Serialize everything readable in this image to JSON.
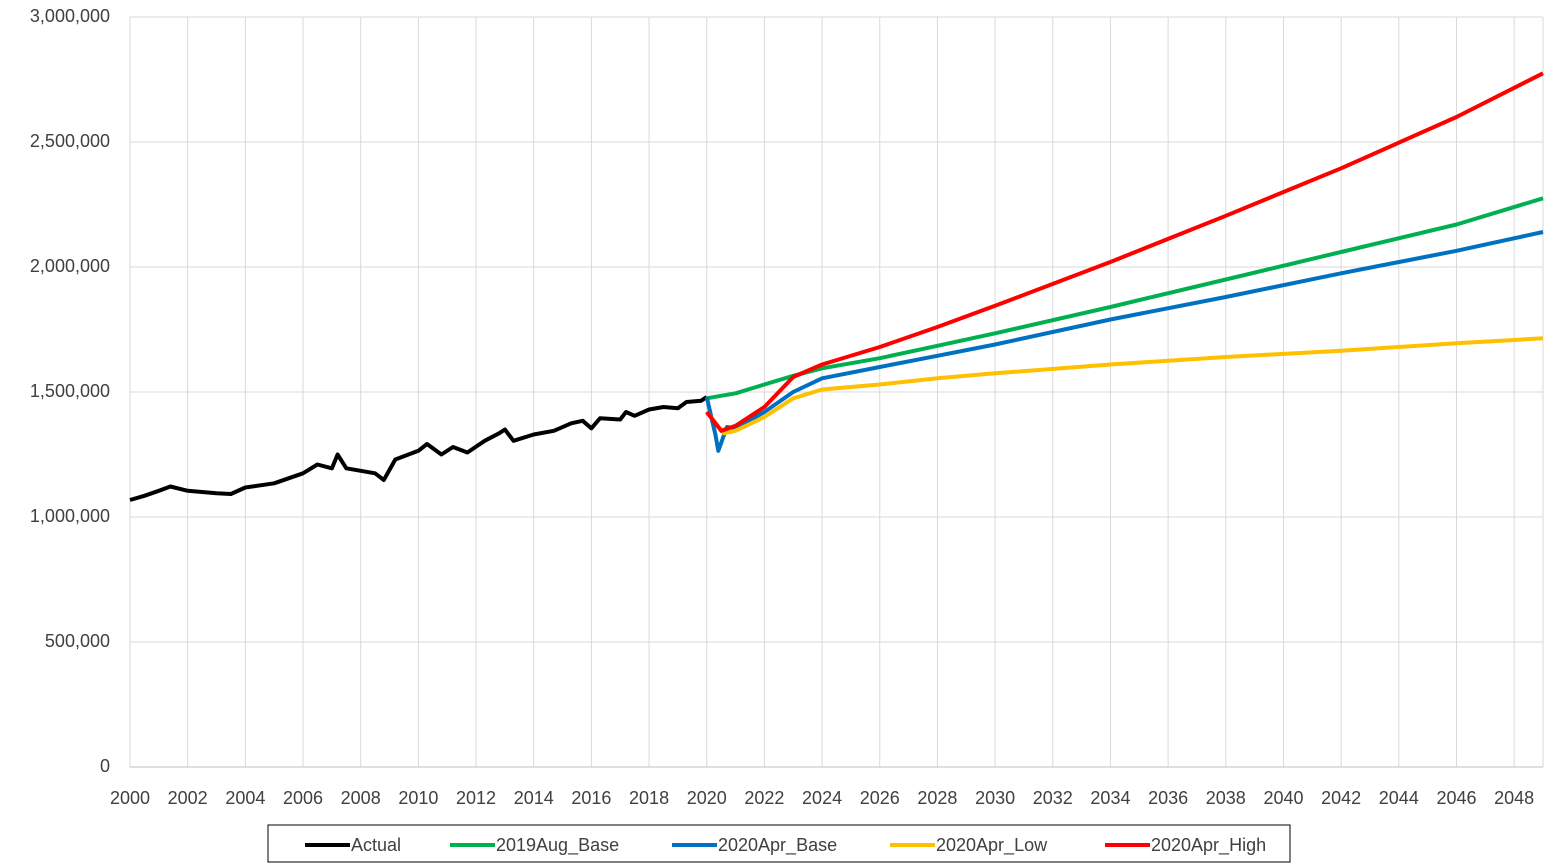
{
  "chart_data": {
    "type": "line",
    "xlim": [
      2000,
      2049
    ],
    "xticks": [
      2000,
      2002,
      2004,
      2006,
      2008,
      2010,
      2012,
      2014,
      2016,
      2018,
      2020,
      2022,
      2024,
      2026,
      2028,
      2030,
      2032,
      2034,
      2036,
      2038,
      2040,
      2042,
      2044,
      2046,
      2048
    ],
    "ylim": [
      0,
      3000000
    ],
    "yticks": [
      0,
      {
        "value": 500000,
        "label": "500,000"
      },
      {
        "value": 1000000,
        "label": "1,000,000"
      },
      {
        "value": 1500000,
        "label": "1,500,000"
      },
      {
        "value": 2000000,
        "label": "2,000,000"
      },
      {
        "value": 2500000,
        "label": "2,500,000"
      },
      {
        "value": 3000000,
        "label": "3,000,000"
      }
    ],
    "grid": true,
    "legend": "bottom",
    "series": [
      {
        "name": "Actual",
        "color": "#000000",
        "x": [
          2000,
          2000.5,
          2001,
          2001.4,
          2002,
          2003,
          2003.5,
          2004,
          2005,
          2006,
          2006.5,
          2007,
          2007.2,
          2007.5,
          2008,
          2008.5,
          2008.8,
          2009.2,
          2010,
          2010.3,
          2010.8,
          2011.2,
          2011.7,
          2012.3,
          2012.8,
          2013,
          2013.3,
          2014,
          2014.7,
          2015.3,
          2015.7,
          2016,
          2016.3,
          2017,
          2017.2,
          2017.5,
          2018,
          2018.5,
          2019,
          2019.3,
          2019.8,
          2020
        ],
        "values": [
          1068000,
          1085000,
          1105000,
          1122000,
          1105000,
          1095000,
          1092000,
          1118000,
          1135000,
          1175000,
          1210000,
          1195000,
          1250000,
          1195000,
          1185000,
          1175000,
          1148000,
          1230000,
          1265000,
          1292000,
          1250000,
          1280000,
          1258000,
          1305000,
          1335000,
          1350000,
          1305000,
          1330000,
          1345000,
          1375000,
          1385000,
          1355000,
          1395000,
          1390000,
          1420000,
          1405000,
          1430000,
          1440000,
          1435000,
          1460000,
          1465000,
          1480000
        ]
      },
      {
        "name": "2019Aug_Base",
        "color": "#00b050",
        "x": [
          2020,
          2021,
          2022,
          2023,
          2024,
          2026,
          2028,
          2030,
          2034,
          2038,
          2042,
          2046,
          2049
        ],
        "values": [
          1475000,
          1495000,
          1530000,
          1565000,
          1595000,
          1635000,
          1685000,
          1735000,
          1840000,
          1950000,
          2060000,
          2170000,
          2275000
        ]
      },
      {
        "name": "2020Apr_Base",
        "color": "#0070c0",
        "x": [
          2020,
          2020.3,
          2020.4,
          2020.7,
          2021,
          2022,
          2023,
          2024,
          2026,
          2028,
          2030,
          2034,
          2038,
          2042,
          2046,
          2049
        ],
        "values": [
          1480000,
          1330000,
          1265000,
          1360000,
          1355000,
          1420000,
          1500000,
          1555000,
          1600000,
          1645000,
          1690000,
          1790000,
          1880000,
          1975000,
          2065000,
          2140000
        ]
      },
      {
        "name": "2020Apr_Low",
        "color": "#ffc000",
        "x": [
          2020,
          2020.6,
          2021,
          2022,
          2023,
          2024,
          2026,
          2028,
          2030,
          2034,
          2038,
          2042,
          2046,
          2049
        ],
        "values": [
          1420000,
          1335000,
          1345000,
          1400000,
          1475000,
          1510000,
          1530000,
          1555000,
          1575000,
          1610000,
          1640000,
          1665000,
          1695000,
          1715000
        ]
      },
      {
        "name": "2020Apr_High",
        "color": "#ff0000",
        "x": [
          2020,
          2020.5,
          2021,
          2022,
          2023,
          2024,
          2026,
          2028,
          2030,
          2034,
          2038,
          2042,
          2046,
          2049
        ],
        "values": [
          1420000,
          1345000,
          1365000,
          1440000,
          1560000,
          1610000,
          1680000,
          1760000,
          1845000,
          2020000,
          2205000,
          2395000,
          2600000,
          2775000
        ]
      }
    ]
  }
}
